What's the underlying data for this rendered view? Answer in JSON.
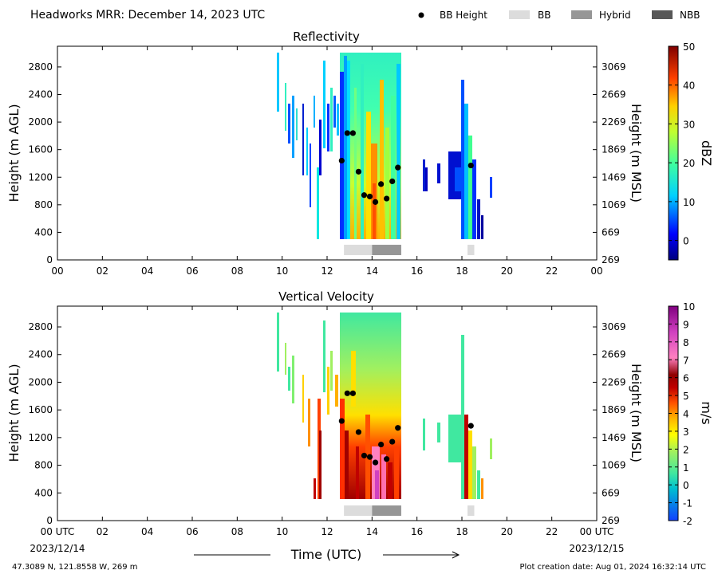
{
  "header": {
    "title": "Headworks MRR:  December 14, 2023 UTC",
    "legend": [
      {
        "label": "BB Height",
        "kind": "dot",
        "color": "#000000"
      },
      {
        "label": "BB",
        "kind": "box",
        "color": "#dcdcdc"
      },
      {
        "label": "Hybrid",
        "kind": "box",
        "color": "#969696"
      },
      {
        "label": "NBB",
        "kind": "box",
        "color": "#575757"
      }
    ]
  },
  "chart_data": [
    {
      "type": "heatmap",
      "title": "Reflectivity",
      "xlabel": "Time (UTC)",
      "ylabel": "Height (m AGL)",
      "y2label": "Height (m MSL)",
      "xlim": [
        0,
        24
      ],
      "ylim": [
        0,
        3100
      ],
      "x_ticks": [
        "00",
        "02",
        "04",
        "06",
        "08",
        "10",
        "12",
        "14",
        "16",
        "18",
        "20",
        "22",
        "00"
      ],
      "y_ticks": [
        0,
        400,
        800,
        1200,
        1600,
        2000,
        2400,
        2800
      ],
      "y2_ticks": [
        "269",
        "669",
        "1069",
        "1469",
        "1869",
        "2269",
        "2669",
        "3069"
      ],
      "colorbar": {
        "label": "dBZ",
        "min": -5,
        "max": 50,
        "ticks": [
          "0",
          "10",
          "20",
          "30",
          "40",
          "50"
        ],
        "tick_values": [
          0,
          10,
          20,
          30,
          40,
          50
        ]
      },
      "bb_height": [
        {
          "t": 12.65,
          "h": 1440
        },
        {
          "t": 12.9,
          "h": 1840
        },
        {
          "t": 13.15,
          "h": 1840
        },
        {
          "t": 13.4,
          "h": 1280
        },
        {
          "t": 13.65,
          "h": 940
        },
        {
          "t": 13.9,
          "h": 920
        },
        {
          "t": 14.15,
          "h": 840
        },
        {
          "t": 14.4,
          "h": 1100
        },
        {
          "t": 14.65,
          "h": 890
        },
        {
          "t": 14.9,
          "h": 1140
        },
        {
          "t": 15.15,
          "h": 1340
        },
        {
          "t": 18.4,
          "h": 1370
        }
      ],
      "bb_type": [
        {
          "start": 12.75,
          "end": 14.0,
          "type": "BB"
        },
        {
          "start": 14.0,
          "end": 15.3,
          "type": "Hybrid"
        },
        {
          "start": 18.25,
          "end": 18.55,
          "type": "BB"
        }
      ]
    },
    {
      "type": "heatmap",
      "title": "Vertical Velocity",
      "xlabel": "Time (UTC)",
      "ylabel": "Height (m AGL)",
      "y2label": "Height (m MSL)",
      "xlim": [
        0,
        24
      ],
      "ylim": [
        0,
        3100
      ],
      "x_ticks": [
        "00 UTC",
        "02",
        "04",
        "06",
        "08",
        "10",
        "12",
        "14",
        "16",
        "18",
        "20",
        "22",
        "00 UTC"
      ],
      "x_subticks": {
        "start": "2023/12/14",
        "end": "2023/12/15"
      },
      "y_ticks": [
        0,
        400,
        800,
        1200,
        1600,
        2000,
        2400,
        2800
      ],
      "y2_ticks": [
        "269",
        "669",
        "1069",
        "1469",
        "1869",
        "2269",
        "2669",
        "3069"
      ],
      "colorbar": {
        "label": "m/s",
        "min": -2,
        "max": 10,
        "ticks": [
          "-2",
          "-1",
          "0",
          "1",
          "2",
          "3",
          "4",
          "5",
          "6",
          "7",
          "8",
          "9",
          "10"
        ],
        "tick_values": [
          -2,
          -1,
          0,
          1,
          2,
          3,
          4,
          5,
          6,
          7,
          8,
          9,
          10
        ]
      },
      "bb_height": [
        {
          "t": 12.65,
          "h": 1440
        },
        {
          "t": 12.9,
          "h": 1840
        },
        {
          "t": 13.15,
          "h": 1840
        },
        {
          "t": 13.4,
          "h": 1280
        },
        {
          "t": 13.65,
          "h": 940
        },
        {
          "t": 13.9,
          "h": 920
        },
        {
          "t": 14.15,
          "h": 840
        },
        {
          "t": 14.4,
          "h": 1100
        },
        {
          "t": 14.65,
          "h": 890
        },
        {
          "t": 14.9,
          "h": 1140
        },
        {
          "t": 15.15,
          "h": 1340
        },
        {
          "t": 18.4,
          "h": 1370
        }
      ],
      "bb_type": [
        {
          "start": 12.75,
          "end": 14.0,
          "type": "BB"
        },
        {
          "start": 14.0,
          "end": 15.3,
          "type": "Hybrid"
        },
        {
          "start": 18.25,
          "end": 18.55,
          "type": "BB"
        }
      ]
    }
  ],
  "footer": {
    "location": "47.3089 N, 121.8558 W, 269 m",
    "created": "Plot creation date: Aug 01, 2024 16:32:14 UTC"
  }
}
